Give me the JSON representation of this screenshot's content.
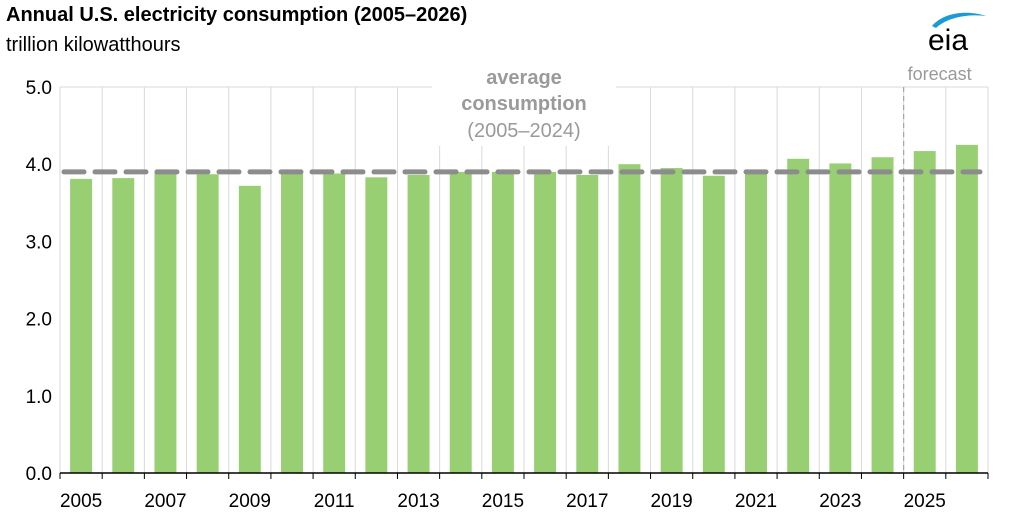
{
  "brand": {
    "logo_text": "eia",
    "accent_color": "#1a9ad6"
  },
  "chart_data": {
    "type": "bar",
    "title": "Annual U.S. electricity consumption (2005–2026)",
    "subtitle": "trillion kilowatthours",
    "xlabel": "",
    "ylabel": "",
    "categories": [
      "2005",
      "2006",
      "2007",
      "2008",
      "2009",
      "2010",
      "2011",
      "2012",
      "2013",
      "2014",
      "2015",
      "2016",
      "2017",
      "2018",
      "2019",
      "2020",
      "2021",
      "2022",
      "2023",
      "2024",
      "2025",
      "2026"
    ],
    "values": [
      3.81,
      3.82,
      3.89,
      3.87,
      3.72,
      3.89,
      3.88,
      3.83,
      3.86,
      3.9,
      3.9,
      3.9,
      3.86,
      4.0,
      3.95,
      3.85,
      3.93,
      4.07,
      4.01,
      4.09,
      4.17,
      4.25
    ],
    "x_tick_labels": [
      "2005",
      "2007",
      "2009",
      "2011",
      "2013",
      "2015",
      "2017",
      "2019",
      "2021",
      "2023",
      "2025"
    ],
    "y_tick_labels": [
      "0.0",
      "1.0",
      "2.0",
      "3.0",
      "4.0",
      "5.0"
    ],
    "ylim": [
      0,
      5
    ],
    "grid": true,
    "bar_color": "#97cf72",
    "average_line": {
      "value": 3.9,
      "color": "#8c8c8c",
      "label_lines": [
        "average",
        "consumption",
        "(2005–2024)"
      ]
    },
    "forecast": {
      "label": "forecast",
      "starts_after": "2024",
      "color": "#9a9a9a"
    }
  }
}
